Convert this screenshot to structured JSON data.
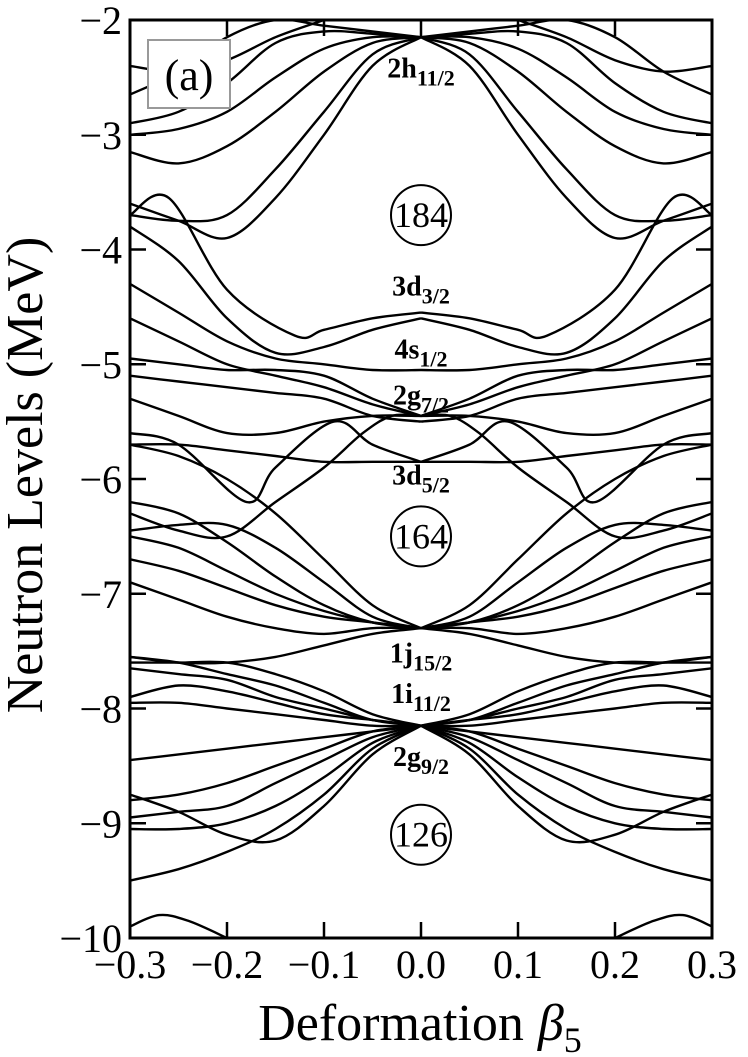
{
  "chart_data": {
    "type": "line",
    "panel_label": "(a)",
    "xlabel": "Deformation",
    "xlabel_symbol": "β",
    "xlabel_subscript": "5",
    "ylabel": "Neutron Levels (MeV)",
    "xlim": [
      -0.3,
      0.3
    ],
    "ylim": [
      -10,
      -2
    ],
    "x_ticks": [
      -0.3,
      -0.2,
      -0.1,
      0.0,
      0.1,
      0.2,
      0.3
    ],
    "x_tick_labels": [
      "−0.3",
      "−0.2",
      "−0.1",
      "0.0",
      "0.1",
      "0.2",
      "0.3"
    ],
    "y_ticks": [
      -10,
      -9,
      -8,
      -7,
      -6,
      -5,
      -4,
      -3,
      -2
    ],
    "y_tick_labels": [
      "−10",
      "−9",
      "−8",
      "−7",
      "−6",
      "−5",
      "−4",
      "−3",
      "−2"
    ],
    "orbital_labels": [
      {
        "main": "2h",
        "sub": "11/2",
        "x": 0.0,
        "y": -2.5
      },
      {
        "main": "3d",
        "sub": "3/2",
        "x": 0.0,
        "y": -4.4
      },
      {
        "main": "4s",
        "sub": "1/2",
        "x": 0.0,
        "y": -4.95
      },
      {
        "main": "2g",
        "sub": "7/2",
        "x": 0.0,
        "y": -5.35
      },
      {
        "main": "3d",
        "sub": "5/2",
        "x": 0.0,
        "y": -6.05
      },
      {
        "main": "1j",
        "sub": "15/2",
        "x": 0.0,
        "y": -7.6
      },
      {
        "main": "1i",
        "sub": "11/2",
        "x": 0.0,
        "y": -7.95
      },
      {
        "main": "2g",
        "sub": "9/2",
        "x": 0.0,
        "y": -8.5
      }
    ],
    "magic_numbers": [
      {
        "label": "184",
        "x": 0.0,
        "y": -3.7
      },
      {
        "label": "164",
        "x": 0.0,
        "y": -6.5
      },
      {
        "label": "126",
        "x": 0.0,
        "y": -9.1
      }
    ],
    "series": [
      {
        "x": [
          0.0,
          0.05,
          0.1,
          0.15,
          0.2,
          0.25,
          0.3
        ],
        "y": [
          -2.15,
          -2.2,
          -2.45,
          -2.8,
          -3.1,
          -3.25,
          -3.15
        ]
      },
      {
        "x": [
          0.0,
          0.05,
          0.1,
          0.15,
          0.2,
          0.25,
          0.3
        ],
        "y": [
          -2.15,
          -2.15,
          -2.25,
          -2.5,
          -2.8,
          -2.95,
          -3.0
        ]
      },
      {
        "x": [
          0.0,
          0.05,
          0.1,
          0.15,
          0.2,
          0.25,
          0.3
        ],
        "y": [
          -2.15,
          -2.12,
          -2.1,
          -2.2,
          -2.55,
          -2.8,
          -2.9
        ]
      },
      {
        "x": [
          0.0,
          0.05,
          0.1,
          0.15,
          0.2,
          0.25,
          0.3
        ],
        "y": [
          -2.15,
          -2.1,
          -2.05,
          -2.0,
          -2.15,
          -2.45,
          -2.65
        ]
      },
      {
        "x": [
          0.0,
          0.05,
          0.1,
          0.15,
          0.2,
          0.25,
          0.3
        ],
        "y": [
          -2.15,
          -2.3,
          -2.8,
          -3.3,
          -3.7,
          -3.75,
          -3.7
        ]
      },
      {
        "x": [
          0.0,
          0.05,
          0.1,
          0.15,
          0.2,
          0.25,
          0.3
        ],
        "y": [
          -2.15,
          -2.4,
          -3.0,
          -3.55,
          -3.9,
          -3.75,
          -3.6
        ]
      },
      {
        "x": [
          0.1,
          0.15,
          0.2,
          0.25,
          0.3
        ],
        "y": [
          -2.0,
          -2.15,
          -2.35,
          -2.45,
          -2.4
        ]
      },
      {
        "x": [
          0.0,
          0.05,
          0.1,
          0.13,
          0.2,
          0.26,
          0.3
        ],
        "y": [
          -4.55,
          -4.6,
          -4.7,
          -4.75,
          -4.35,
          -3.55,
          -3.7
        ]
      },
      {
        "x": [
          0.0,
          0.05,
          0.1,
          0.15,
          0.2,
          0.25,
          0.3
        ],
        "y": [
          -4.6,
          -4.7,
          -4.85,
          -4.9,
          -4.6,
          -4.1,
          -3.8
        ]
      },
      {
        "x": [
          0.0,
          0.05,
          0.1,
          0.15,
          0.2,
          0.25,
          0.3
        ],
        "y": [
          -5.05,
          -5.05,
          -5.0,
          -4.95,
          -4.8,
          -4.55,
          -4.3
        ]
      },
      {
        "x": [
          0.0,
          0.05,
          0.1,
          0.15,
          0.2,
          0.25,
          0.3
        ],
        "y": [
          -5.45,
          -5.3,
          -5.1,
          -5.05,
          -5.05,
          -5.0,
          -4.95
        ]
      },
      {
        "x": [
          0.0,
          0.05,
          0.1,
          0.15,
          0.2,
          0.25,
          0.3
        ],
        "y": [
          -5.45,
          -5.35,
          -5.2,
          -5.1,
          -5.0,
          -4.8,
          -4.6
        ]
      },
      {
        "x": [
          0.0,
          0.05,
          0.1,
          0.15,
          0.2,
          0.25,
          0.3
        ],
        "y": [
          -5.5,
          -5.45,
          -5.3,
          -5.25,
          -5.2,
          -5.15,
          -5.1
        ]
      },
      {
        "x": [
          0.0,
          0.05,
          0.1,
          0.15,
          0.2,
          0.25,
          0.3
        ],
        "y": [
          -5.45,
          -5.45,
          -5.5,
          -5.6,
          -5.6,
          -5.45,
          -5.3
        ]
      },
      {
        "x": [
          0.0,
          0.05,
          0.09,
          0.15,
          0.18,
          0.25,
          0.3
        ],
        "y": [
          -5.85,
          -5.7,
          -5.5,
          -5.9,
          -6.2,
          -5.7,
          -5.6
        ]
      },
      {
        "x": [
          0.0,
          0.05,
          0.1,
          0.15,
          0.2,
          0.25,
          0.3
        ],
        "y": [
          -5.85,
          -5.85,
          -5.85,
          -5.8,
          -5.75,
          -5.7,
          -5.7
        ]
      },
      {
        "x": [
          0.0,
          0.03,
          0.06,
          0.1,
          0.15,
          0.2,
          0.25,
          0.3
        ],
        "y": [
          -5.45,
          -5.45,
          -5.6,
          -5.9,
          -6.2,
          -6.5,
          -6.45,
          -6.3
        ]
      },
      {
        "x": [
          0.0,
          0.05,
          0.1,
          0.15,
          0.2,
          0.25,
          0.3
        ],
        "y": [
          -7.3,
          -7.1,
          -6.7,
          -6.3,
          -6.0,
          -5.8,
          -5.7
        ]
      },
      {
        "x": [
          0.0,
          0.05,
          0.1,
          0.15,
          0.2,
          0.25,
          0.3
        ],
        "y": [
          -7.3,
          -7.2,
          -6.9,
          -6.6,
          -6.4,
          -6.4,
          -6.45
        ]
      },
      {
        "x": [
          0.0,
          0.05,
          0.1,
          0.15,
          0.2,
          0.25,
          0.3
        ],
        "y": [
          -7.3,
          -7.25,
          -7.1,
          -6.85,
          -6.55,
          -6.3,
          -6.2
        ]
      },
      {
        "x": [
          0.0,
          0.05,
          0.1,
          0.15,
          0.2,
          0.25,
          0.3
        ],
        "y": [
          -7.3,
          -7.25,
          -7.15,
          -7.0,
          -6.8,
          -6.6,
          -6.5
        ]
      },
      {
        "x": [
          0.0,
          0.05,
          0.1,
          0.15,
          0.2,
          0.25,
          0.3
        ],
        "y": [
          -7.3,
          -7.25,
          -7.2,
          -7.1,
          -6.95,
          -6.8,
          -6.7
        ]
      },
      {
        "x": [
          0.0,
          0.05,
          0.1,
          0.15,
          0.2,
          0.25,
          0.3
        ],
        "y": [
          -7.3,
          -7.3,
          -7.35,
          -7.3,
          -7.2,
          -7.05,
          -6.9
        ]
      },
      {
        "x": [
          0.0,
          0.05,
          0.1,
          0.15,
          0.2,
          0.25,
          0.3
        ],
        "y": [
          -7.3,
          -7.35,
          -7.45,
          -7.55,
          -7.6,
          -7.6,
          -7.55
        ]
      },
      {
        "x": [
          0.0,
          0.05,
          0.1,
          0.15,
          0.2,
          0.25,
          0.3
        ],
        "y": [
          -8.15,
          -8.05,
          -7.85,
          -7.7,
          -7.6,
          -7.6,
          -7.6
        ]
      },
      {
        "x": [
          0.0,
          0.05,
          0.1,
          0.15,
          0.2,
          0.25,
          0.3
        ],
        "y": [
          -8.15,
          -8.1,
          -7.95,
          -7.8,
          -7.7,
          -7.6,
          -7.55
        ]
      },
      {
        "x": [
          0.0,
          0.05,
          0.1,
          0.15,
          0.2,
          0.25,
          0.3
        ],
        "y": [
          -8.15,
          -8.1,
          -8.0,
          -7.9,
          -7.75,
          -7.7,
          -7.65
        ]
      },
      {
        "x": [
          0.0,
          0.05,
          0.1,
          0.15,
          0.2,
          0.25,
          0.3
        ],
        "y": [
          -8.15,
          -8.1,
          -8.05,
          -7.95,
          -7.85,
          -7.8,
          -7.9
        ]
      },
      {
        "x": [
          0.0,
          0.05,
          0.1,
          0.15,
          0.2,
          0.25,
          0.3
        ],
        "y": [
          -8.15,
          -8.15,
          -8.1,
          -8.05,
          -8.0,
          -7.95,
          -7.95
        ]
      },
      {
        "x": [
          0.0,
          0.05,
          0.1,
          0.15,
          0.2,
          0.25,
          0.3
        ],
        "y": [
          -8.15,
          -8.2,
          -8.25,
          -8.3,
          -8.35,
          -8.4,
          -8.45
        ]
      },
      {
        "x": [
          0.0,
          0.05,
          0.1,
          0.15,
          0.2,
          0.25,
          0.3
        ],
        "y": [
          -8.15,
          -8.2,
          -8.35,
          -8.5,
          -8.65,
          -8.75,
          -8.8
        ]
      },
      {
        "x": [
          0.0,
          0.05,
          0.1,
          0.15,
          0.2,
          0.25,
          0.3
        ],
        "y": [
          -8.15,
          -8.25,
          -8.45,
          -8.65,
          -8.85,
          -8.9,
          -8.95
        ]
      },
      {
        "x": [
          0.0,
          0.05,
          0.1,
          0.15,
          0.2,
          0.25,
          0.3
        ],
        "y": [
          -8.15,
          -8.3,
          -8.6,
          -8.85,
          -9.0,
          -9.05,
          -9.05
        ]
      },
      {
        "x": [
          0.0,
          0.05,
          0.1,
          0.15,
          0.2,
          0.25,
          0.3
        ],
        "y": [
          -8.15,
          -8.35,
          -8.75,
          -9.05,
          -9.25,
          -9.4,
          -9.5
        ]
      },
      {
        "x": [
          0.0,
          0.05,
          0.1,
          0.15,
          0.2,
          0.25,
          0.3
        ],
        "y": [
          -8.15,
          -8.4,
          -8.85,
          -9.15,
          -9.1,
          -8.9,
          -8.75
        ]
      },
      {
        "x": [
          0.2,
          0.24,
          0.27,
          0.3
        ],
        "y": [
          -10.0,
          -9.85,
          -9.8,
          -9.9
        ]
      }
    ]
  }
}
